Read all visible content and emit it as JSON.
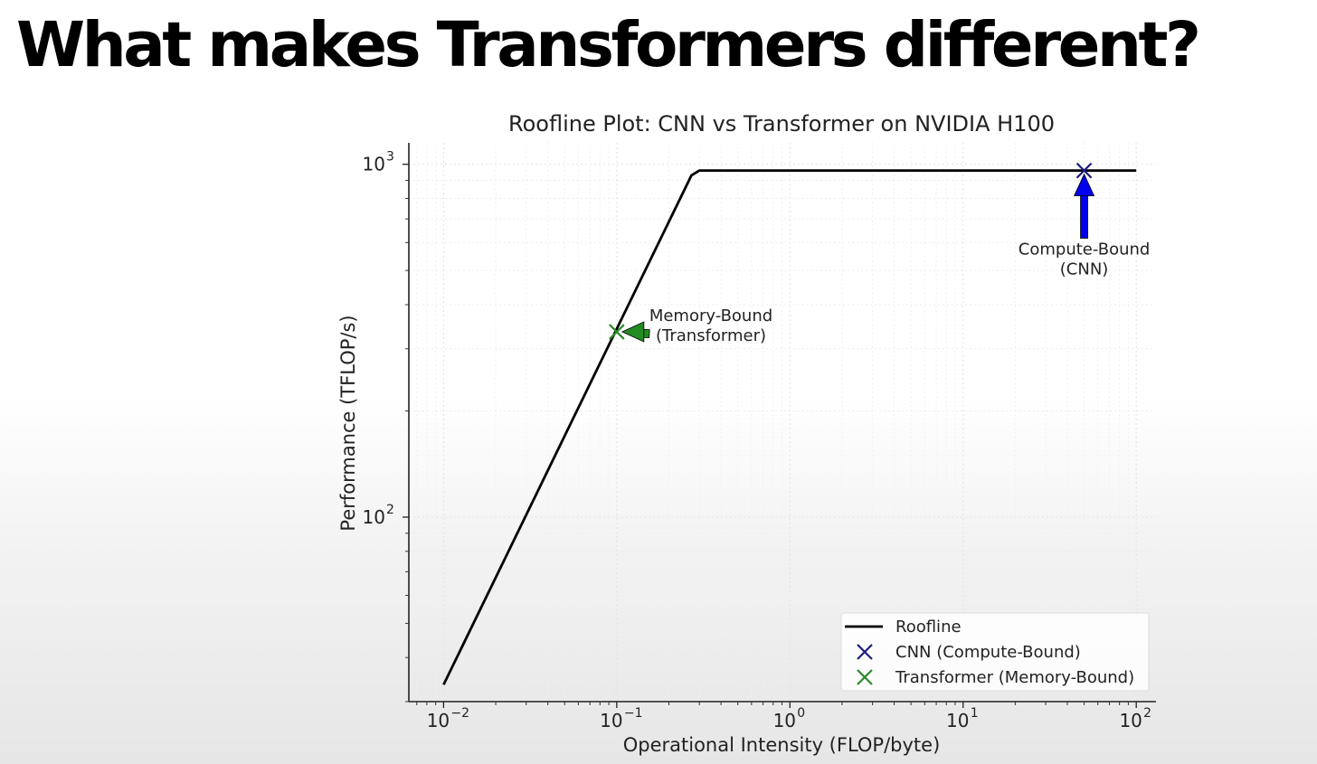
{
  "slide": {
    "title": "What makes Transformers different?"
  },
  "chart_data": {
    "type": "line",
    "title": "Roofline Plot: CNN vs Transformer on NVIDIA H100",
    "xlabel": "Operational Intensity (FLOP/byte)",
    "ylabel": "Performance (TFLOP/s)",
    "xscale": "log",
    "yscale": "log",
    "xlim": [
      0.0063,
      130
    ],
    "ylim": [
      30,
      1150
    ],
    "grid": true,
    "x_ticks": [
      {
        "value": 0.01,
        "base": "10",
        "exp": "−2"
      },
      {
        "value": 0.1,
        "base": "10",
        "exp": "−1"
      },
      {
        "value": 1,
        "base": "10",
        "exp": "0"
      },
      {
        "value": 10,
        "base": "10",
        "exp": "1"
      },
      {
        "value": 100,
        "base": "10",
        "exp": "2"
      }
    ],
    "y_ticks": [
      {
        "value": 100,
        "base": "10",
        "exp": "2"
      },
      {
        "value": 1000,
        "base": "10",
        "exp": "3"
      }
    ],
    "series": [
      {
        "name": "Roofline",
        "kind": "line",
        "color": "#000000",
        "x": [
          0.01,
          0.27,
          0.3,
          100
        ],
        "y": [
          33.5,
          930,
          960,
          960
        ]
      },
      {
        "name": "CNN (Compute-Bound)",
        "kind": "marker",
        "marker": "x",
        "color": "#1a1a80",
        "x": [
          50
        ],
        "y": [
          960
        ]
      },
      {
        "name": "Transformer (Memory-Bound)",
        "kind": "marker",
        "marker": "x",
        "color": "#2a8a2a",
        "x": [
          0.1
        ],
        "y": [
          335
        ]
      }
    ],
    "annotations": [
      {
        "lines": [
          "Compute-Bound",
          "(CNN)"
        ],
        "point": [
          50,
          960
        ],
        "text_at": [
          50,
          555
        ],
        "arrow_color": "#0000ee"
      },
      {
        "lines": [
          "Memory-Bound",
          "(Transformer)"
        ],
        "point": [
          0.1,
          335
        ],
        "text_at": [
          0.35,
          360
        ],
        "arrow_color": "#228b22"
      }
    ],
    "legend": {
      "position": "lower right",
      "entries": [
        "Roofline",
        "CNN (Compute-Bound)",
        "Transformer (Memory-Bound)"
      ]
    }
  }
}
